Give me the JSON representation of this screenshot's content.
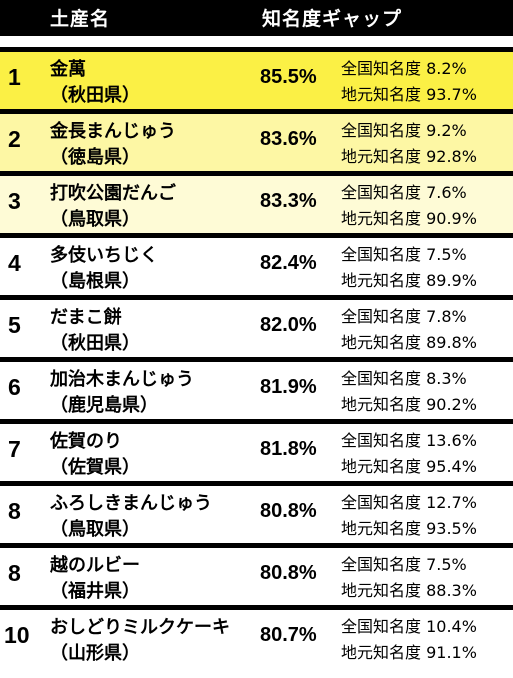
{
  "header": {
    "name_label": "土産名",
    "gap_label": "知名度ギャップ"
  },
  "colors": {
    "rank1": "#fbf045",
    "rank2": "#fdf7a4",
    "rank3": "#fefbd6",
    "rest": "#ffffff"
  },
  "rows": [
    {
      "rank": "1",
      "name": "金萬",
      "pref": "（秋田県）",
      "gap": "85.5%",
      "national": "全国知名度 8.2%",
      "local": "地元知名度 93.7%"
    },
    {
      "rank": "2",
      "name": "金長まんじゅう",
      "pref": "（徳島県）",
      "gap": "83.6%",
      "national": "全国知名度 9.2%",
      "local": "地元知名度 92.8%"
    },
    {
      "rank": "3",
      "name": "打吹公園だんご",
      "pref": "（鳥取県）",
      "gap": "83.3%",
      "national": "全国知名度 7.6%",
      "local": "地元知名度 90.9%"
    },
    {
      "rank": "4",
      "name": "多伎いちじく",
      "pref": "（島根県）",
      "gap": "82.4%",
      "national": "全国知名度 7.5%",
      "local": "地元知名度 89.9%"
    },
    {
      "rank": "5",
      "name": "だまこ餅",
      "pref": "（秋田県）",
      "gap": "82.0%",
      "national": "全国知名度 7.8%",
      "local": "地元知名度 89.8%"
    },
    {
      "rank": "6",
      "name": "加治木まんじゅう",
      "pref": "（鹿児島県）",
      "gap": "81.9%",
      "national": "全国知名度 8.3%",
      "local": "地元知名度 90.2%"
    },
    {
      "rank": "7",
      "name": "佐賀のり",
      "pref": "（佐賀県）",
      "gap": "81.8%",
      "national": "全国知名度 13.6%",
      "local": "地元知名度 95.4%"
    },
    {
      "rank": "8",
      "name": "ふろしきまんじゅう",
      "pref": "（鳥取県）",
      "gap": "80.8%",
      "national": "全国知名度 12.7%",
      "local": "地元知名度 93.5%"
    },
    {
      "rank": "8",
      "name": "越のルビー",
      "pref": "（福井県）",
      "gap": "80.8%",
      "national": "全国知名度 7.5%",
      "local": "地元知名度 88.3%"
    },
    {
      "rank": "10",
      "name": "おしどりミルクケーキ",
      "pref": "（山形県）",
      "gap": "80.7%",
      "national": "全国知名度 10.4%",
      "local": "地元知名度 91.1%"
    }
  ]
}
